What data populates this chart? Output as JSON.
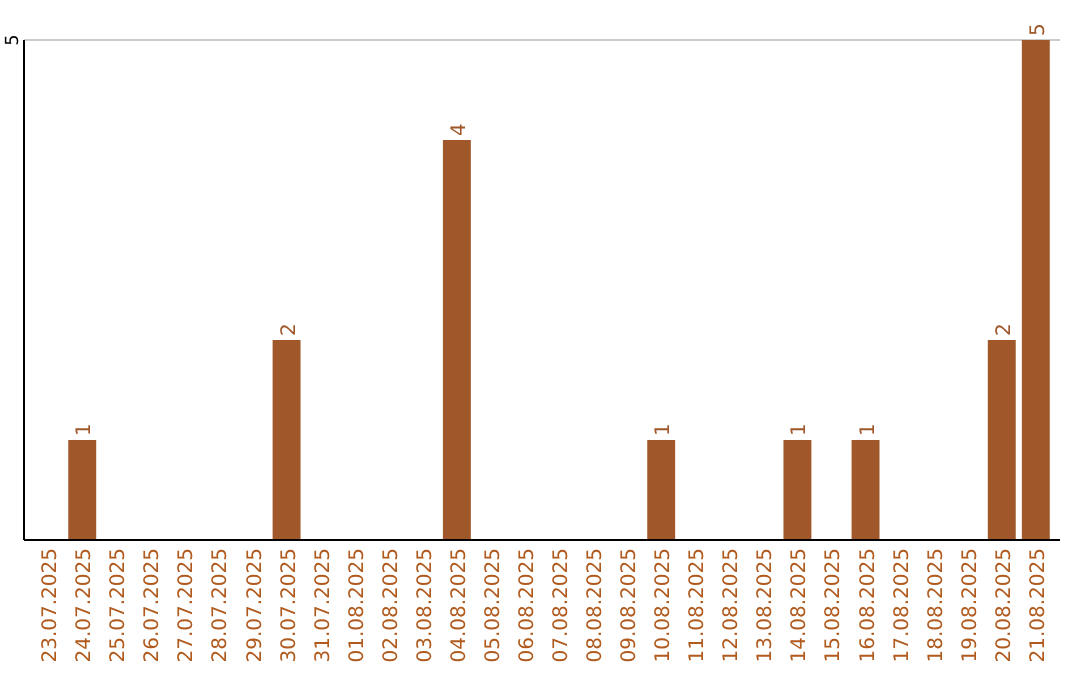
{
  "chart_data": {
    "type": "bar",
    "categories": [
      "23.07.2025",
      "24.07.2025",
      "25.07.2025",
      "26.07.2025",
      "27.07.2025",
      "28.07.2025",
      "29.07.2025",
      "30.07.2025",
      "31.07.2025",
      "01.08.2025",
      "02.08.2025",
      "03.08.2025",
      "04.08.2025",
      "05.08.2025",
      "06.08.2025",
      "07.08.2025",
      "08.08.2025",
      "09.08.2025",
      "10.08.2025",
      "11.08.2025",
      "12.08.2025",
      "13.08.2025",
      "14.08.2025",
      "15.08.2025",
      "16.08.2025",
      "17.08.2025",
      "18.08.2025",
      "19.08.2025",
      "20.08.2025",
      "21.08.2025"
    ],
    "values": [
      0,
      1,
      0,
      0,
      0,
      0,
      0,
      2,
      0,
      0,
      0,
      0,
      4,
      0,
      0,
      0,
      0,
      0,
      1,
      0,
      0,
      0,
      1,
      0,
      1,
      0,
      0,
      0,
      2,
      5
    ],
    "value_labels": [
      null,
      "1",
      null,
      null,
      null,
      null,
      null,
      "2",
      null,
      null,
      null,
      null,
      "4",
      null,
      null,
      null,
      null,
      null,
      "1",
      null,
      null,
      null,
      "1",
      null,
      "1",
      null,
      null,
      null,
      "2",
      "5"
    ],
    "color": "#a0582a",
    "ylim": [
      0,
      5
    ],
    "yticks": [
      5
    ],
    "ref_lines": [
      {
        "axis": "y",
        "value": 5,
        "color": "#cccccc"
      }
    ]
  }
}
